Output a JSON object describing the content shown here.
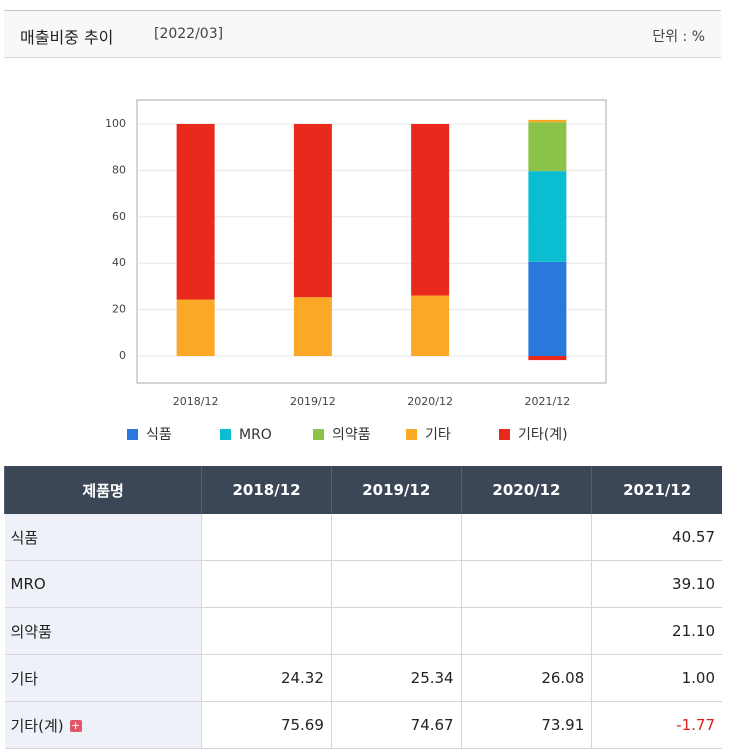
{
  "header": {
    "title": "매출비중 추이",
    "date": "[2022/03]",
    "unit": "단위 : %"
  },
  "chart_data": {
    "type": "stacked-bar",
    "categories": [
      "2018/12",
      "2019/12",
      "2020/12",
      "2021/12"
    ],
    "series": [
      {
        "name": "식품",
        "color": "#2a78dc",
        "values": [
          null,
          null,
          null,
          40.57
        ]
      },
      {
        "name": "MRO",
        "color": "#0bbdd0",
        "values": [
          null,
          null,
          null,
          39.1
        ]
      },
      {
        "name": "의약품",
        "color": "#8bc24a",
        "values": [
          null,
          null,
          null,
          21.1
        ]
      },
      {
        "name": "기타",
        "color": "#fba826",
        "values": [
          24.32,
          25.34,
          26.08,
          1.0
        ]
      },
      {
        "name": "기타(계)",
        "color": "#e8291c",
        "values": [
          75.69,
          74.67,
          73.91,
          -1.77
        ]
      }
    ],
    "ylim": [
      -11.64,
      110.34
    ],
    "yticks": [
      0,
      20,
      40,
      60,
      80,
      100
    ],
    "grid": true
  },
  "table": {
    "columns": [
      "제품명",
      "2018/12",
      "2019/12",
      "2020/12",
      "2021/12"
    ],
    "rows": [
      {
        "label": "식품",
        "cells": [
          null,
          null,
          null,
          "40.57"
        ]
      },
      {
        "label": "MRO",
        "cells": [
          null,
          null,
          null,
          "39.10"
        ]
      },
      {
        "label": "의약품",
        "cells": [
          null,
          null,
          null,
          "21.10"
        ]
      },
      {
        "label": "기타",
        "cells": [
          "24.32",
          "25.34",
          "26.08",
          "1.00"
        ]
      },
      {
        "label": "기타(계)",
        "cells": [
          "75.69",
          "74.67",
          "73.91",
          "-1.77"
        ]
      }
    ]
  }
}
